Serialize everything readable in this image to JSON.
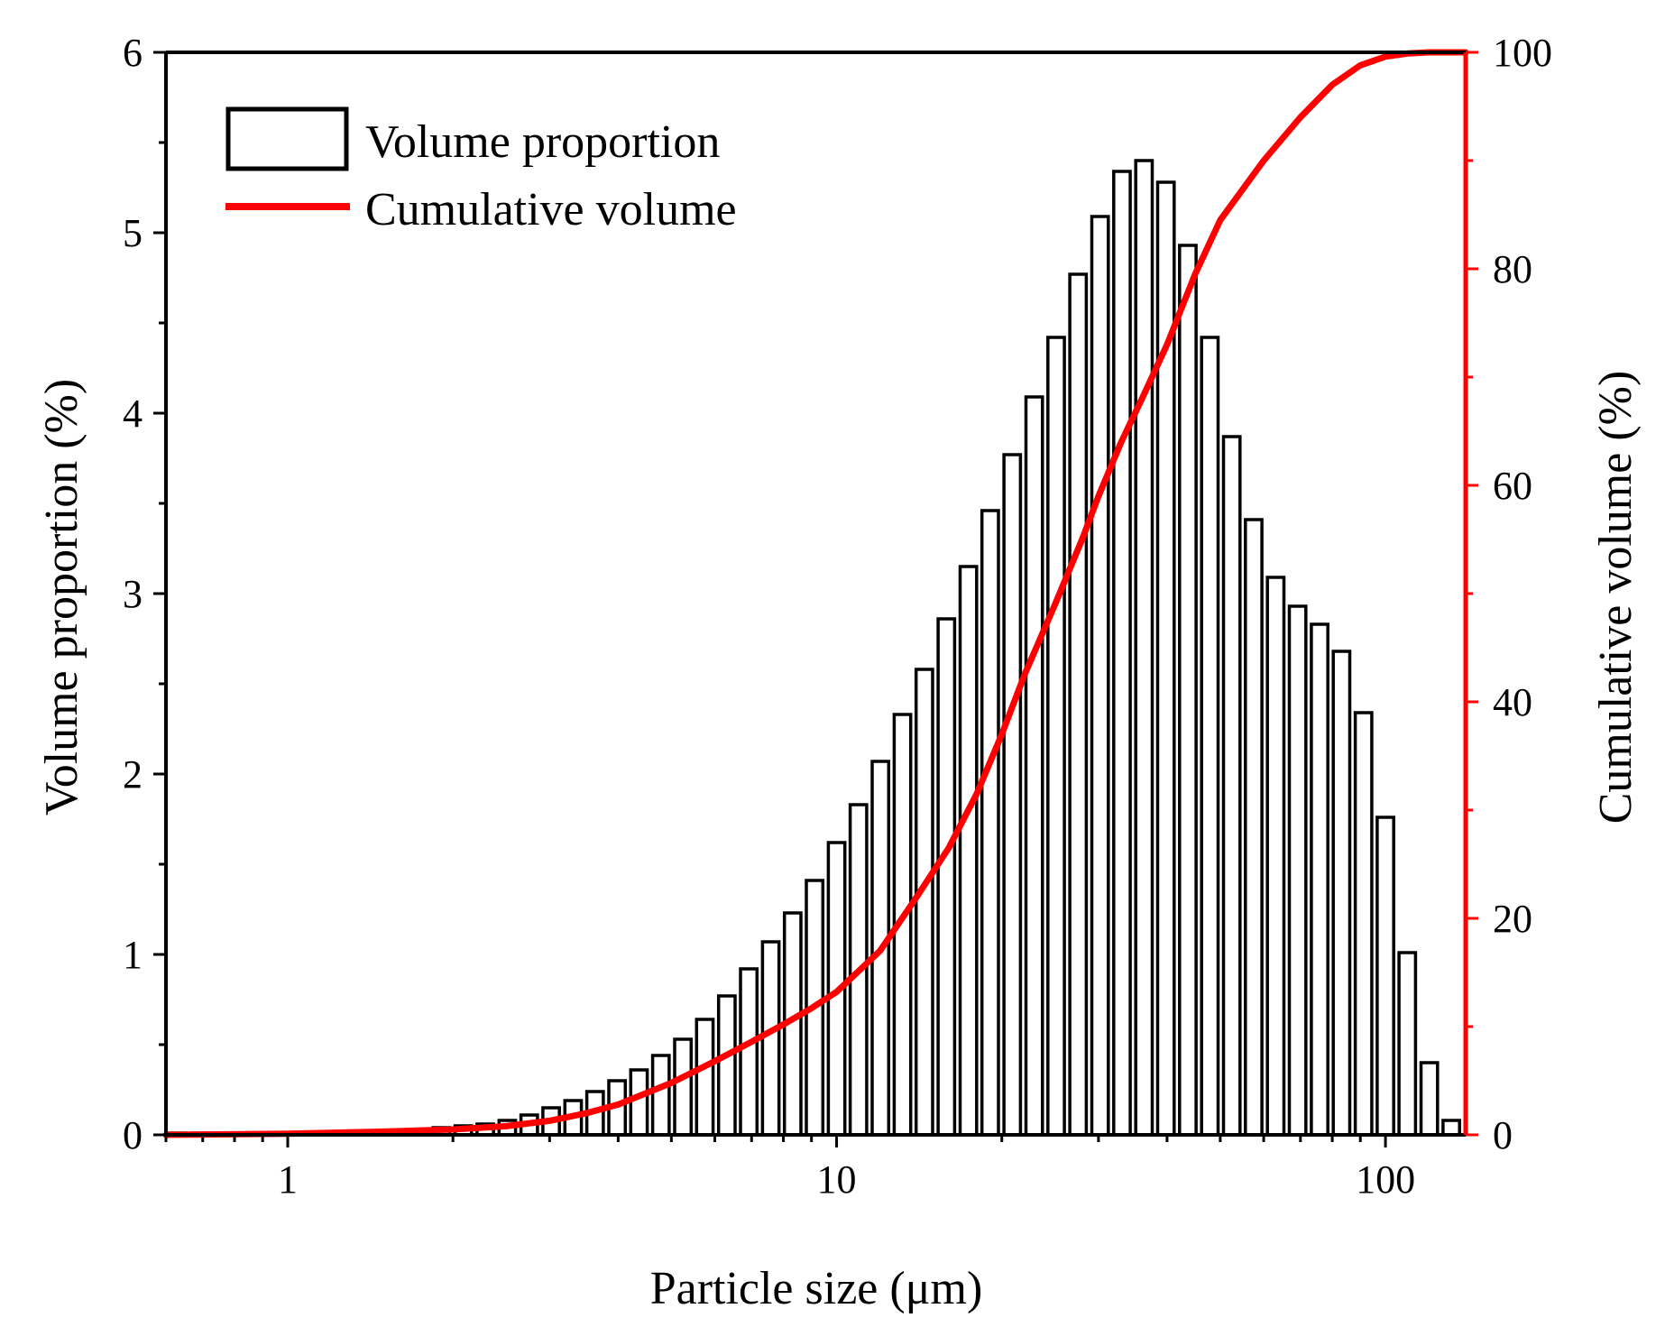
{
  "chart_data": {
    "type": "bar",
    "title": "",
    "xlabel": "Particle size (μm)",
    "ylabel": "Volume proportion (%)",
    "y2label": "Cumulative volume (%)",
    "xscale": "log",
    "xlim": [
      0.6,
      140
    ],
    "ylim": [
      0,
      6
    ],
    "y2lim": [
      0,
      100
    ],
    "xticks": [
      "1",
      "10",
      "100"
    ],
    "yticks": [
      "0",
      "1",
      "2",
      "3",
      "4",
      "5",
      "6"
    ],
    "y2ticks": [
      "0",
      "20",
      "40",
      "60",
      "80",
      "100"
    ],
    "legend": {
      "placement": "top-left",
      "entries": [
        "Volume proportion",
        "Cumulative volume"
      ]
    },
    "colors": {
      "bars": "#000000",
      "cumulative": "#ff0000",
      "right_axis": "#ff0000"
    },
    "bin_width_factor": 1.0964,
    "series": [
      {
        "name": "Volume proportion",
        "type": "bar",
        "x": [
          0.631,
          0.692,
          0.759,
          0.832,
          0.912,
          1.0,
          1.096,
          1.202,
          1.318,
          1.445,
          1.585,
          1.738,
          1.905,
          2.089,
          2.291,
          2.512,
          2.754,
          3.02,
          3.311,
          3.631,
          3.981,
          4.365,
          4.786,
          5.248,
          5.754,
          6.31,
          6.918,
          7.586,
          8.318,
          9.12,
          10.0,
          10.96,
          12.02,
          13.18,
          14.45,
          15.85,
          17.38,
          19.05,
          20.89,
          22.91,
          25.12,
          27.54,
          30.2,
          33.11,
          36.31,
          39.81,
          43.65,
          47.86,
          52.48,
          57.54,
          63.1,
          69.18,
          75.86,
          83.18,
          91.2,
          100.0,
          109.6,
          120.2,
          131.8
        ],
        "values": [
          0.01,
          0.01,
          0.01,
          0.01,
          0.01,
          0.01,
          0.01,
          0.01,
          0.01,
          0.02,
          0.02,
          0.03,
          0.04,
          0.05,
          0.06,
          0.08,
          0.11,
          0.15,
          0.19,
          0.24,
          0.3,
          0.36,
          0.44,
          0.53,
          0.64,
          0.77,
          0.92,
          1.07,
          1.23,
          1.41,
          1.62,
          1.83,
          2.07,
          2.33,
          2.58,
          2.86,
          3.15,
          3.46,
          3.77,
          4.09,
          4.42,
          4.77,
          5.09,
          5.34,
          5.4,
          5.28,
          4.93,
          4.42,
          3.87,
          3.41,
          3.09,
          2.93,
          2.83,
          2.68,
          2.34,
          1.76,
          1.01,
          0.4,
          0.08
        ]
      },
      {
        "name": "Cumulative volume",
        "type": "line",
        "axis": "right",
        "x": [
          0.6,
          1.0,
          1.5,
          2.0,
          2.5,
          3.0,
          3.5,
          4.0,
          5.0,
          6.0,
          7.0,
          8.0,
          9.0,
          10.0,
          12.0,
          14.0,
          16.0,
          18.0,
          20.0,
          22.0,
          25.0,
          28.0,
          30.0,
          33.0,
          36.0,
          40.0,
          45.0,
          50.0,
          60.0,
          70.0,
          80.0,
          90.0,
          100.0,
          110.0,
          120.0,
          140.0
        ],
        "values": [
          0,
          0.1,
          0.3,
          0.5,
          0.8,
          1.3,
          2.0,
          2.8,
          4.8,
          6.8,
          8.6,
          10.2,
          11.7,
          13.2,
          17.0,
          22.0,
          26.5,
          31.5,
          37.0,
          42.5,
          49.0,
          55.0,
          59.0,
          64.0,
          68.0,
          73.0,
          79.5,
          84.5,
          90.0,
          94.0,
          97.0,
          98.8,
          99.6,
          99.9,
          100.0,
          100.0
        ]
      }
    ]
  }
}
